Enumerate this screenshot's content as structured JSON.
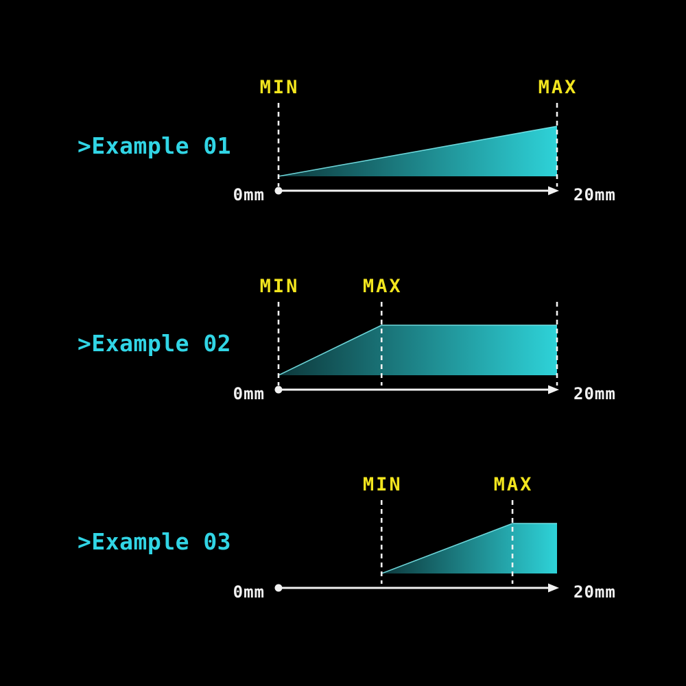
{
  "colors": {
    "background": "#000000",
    "accent_cyan": "#31d5e5",
    "accent_yellow": "#f2e51e",
    "axis_white": "#f2f2f2",
    "shape_gradient_dark": "#0d383b",
    "shape_gradient_bright": "#2ed2d8",
    "shape_edge_highlight": "#7deef2"
  },
  "chart_data": {
    "type": "area",
    "title": "",
    "unit": "mm",
    "axis": {
      "range_mm": [
        0,
        20
      ],
      "start_label": "0mm",
      "end_label": "20mm"
    },
    "legend": "wedge height represents value ramping from MIN position to MAX position along a 0-20mm scale",
    "examples": [
      {
        "prefix": ">",
        "name": "Example 01",
        "min_label": "MIN",
        "max_label": "MAX",
        "min_mm": 0,
        "max_mm": 20,
        "end_tick": false,
        "axis_start_label": "0mm",
        "axis_end_label": "20mm"
      },
      {
        "prefix": ">",
        "name": "Example 02",
        "min_label": "MIN",
        "max_label": "MAX",
        "min_mm": 0,
        "max_mm": 7.4,
        "end_tick": true,
        "axis_start_label": "0mm",
        "axis_end_label": "20mm"
      },
      {
        "prefix": ">",
        "name": "Example 03",
        "min_label": "MIN",
        "max_label": "MAX",
        "min_mm": 7.4,
        "max_mm": 16.8,
        "end_tick": false,
        "axis_start_label": "0mm",
        "axis_end_label": "20mm"
      }
    ]
  }
}
